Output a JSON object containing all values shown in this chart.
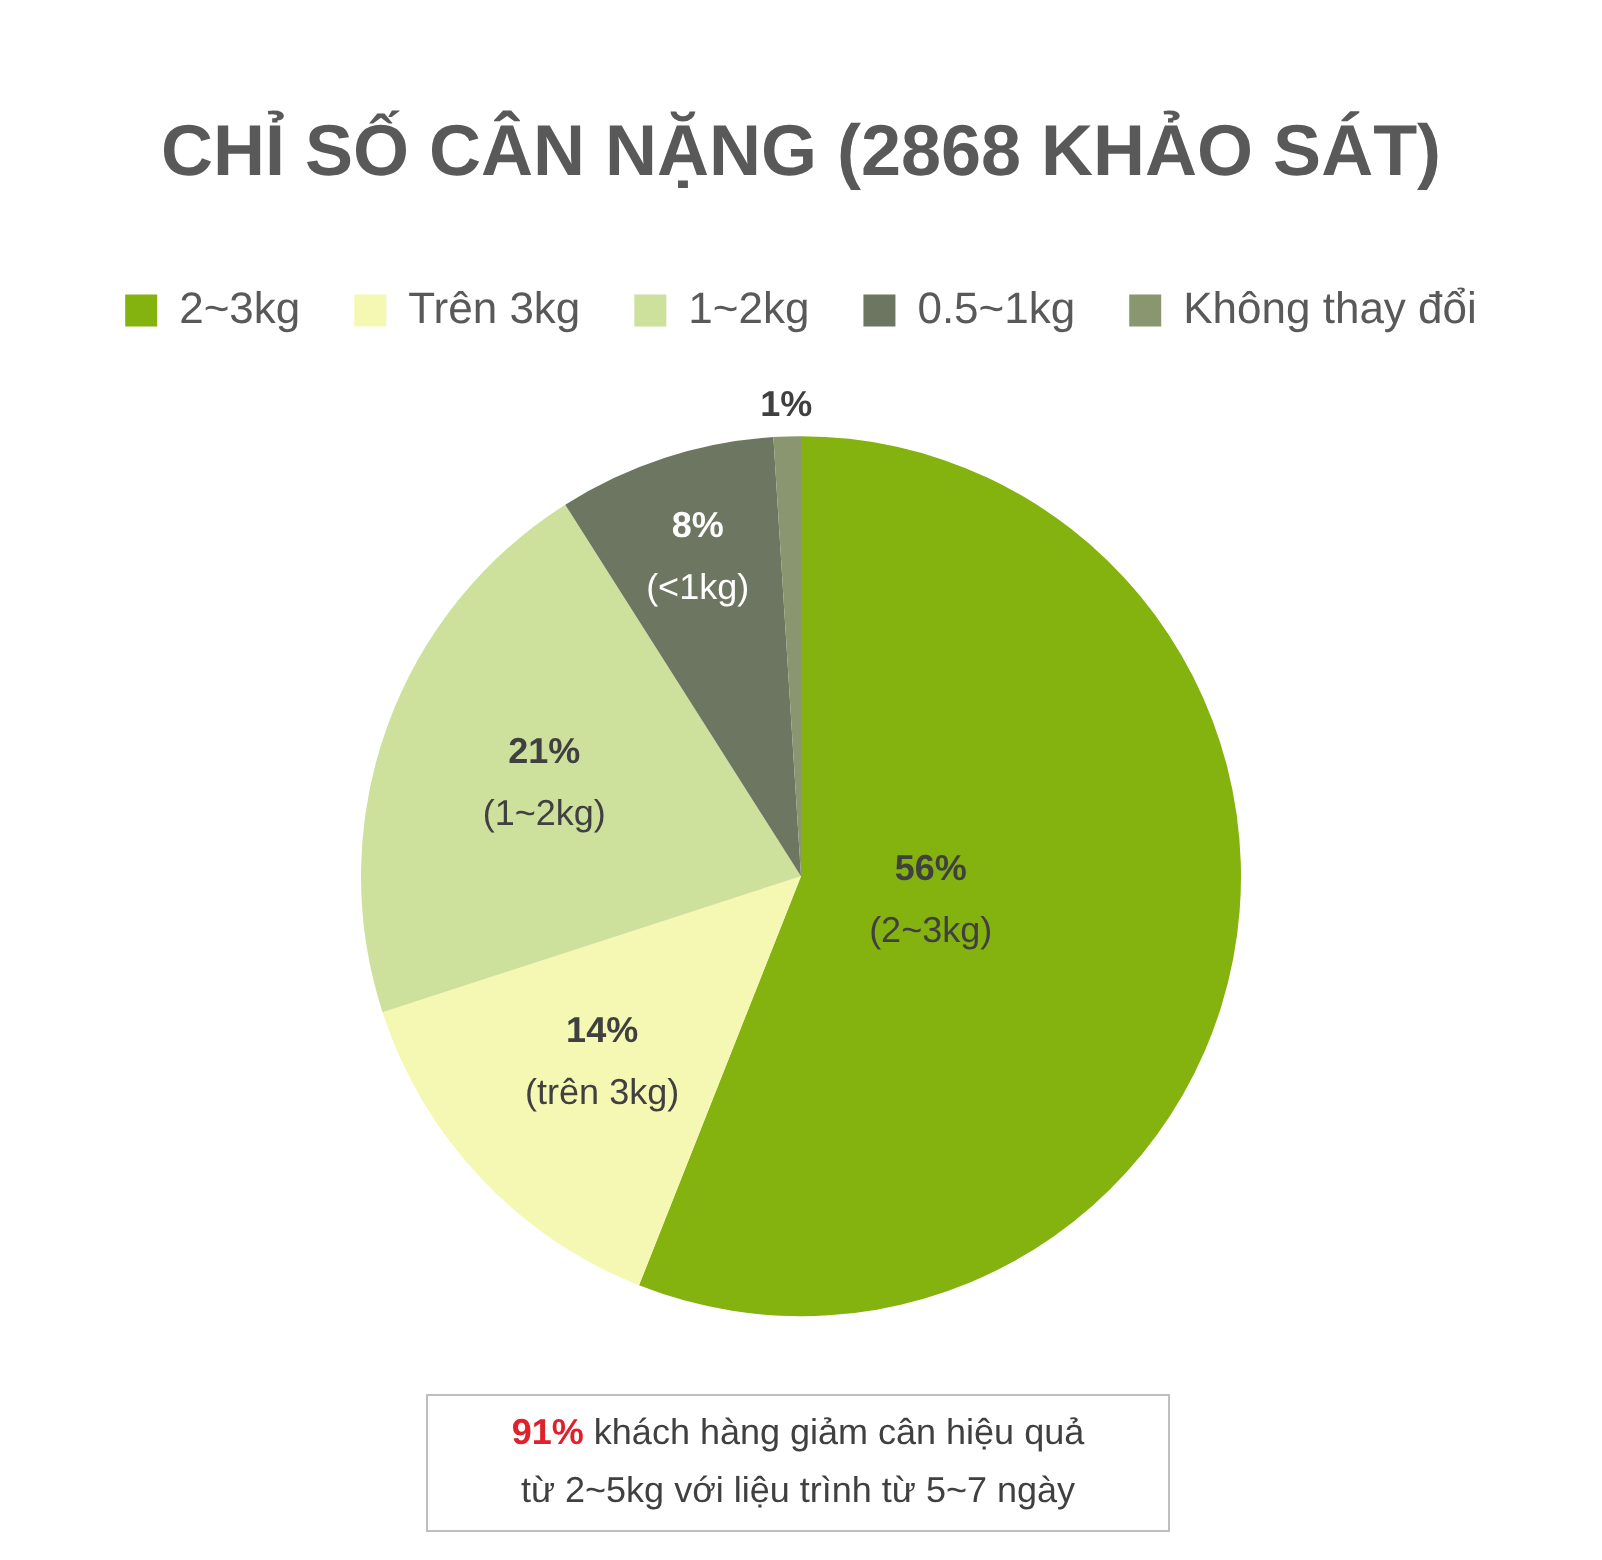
{
  "chart_data": {
    "type": "pie",
    "title": "CHỈ SỐ CÂN NẶNG (2868 KHẢO SÁT)",
    "categories": [
      "2~3kg",
      "Trên 3kg",
      "1~2kg",
      "0.5~1kg",
      "Không thay đổi"
    ],
    "values": [
      56,
      14,
      21,
      8,
      1
    ],
    "colors": [
      "#84b20f",
      "#f5f8b2",
      "#cde09c",
      "#6d7660",
      "#8a9670"
    ],
    "value_labels": [
      "56%\n(2~3kg)",
      "14%\n(trên 3kg)",
      "21%\n(1~2kg)",
      "8%\n(<1kg)",
      "1%"
    ],
    "legend": "top",
    "annotations": [
      "91% khách hàng giảm cân hiệu quả\ntừ 2~5kg với liệu trình từ 5~7 ngày"
    ]
  }
}
